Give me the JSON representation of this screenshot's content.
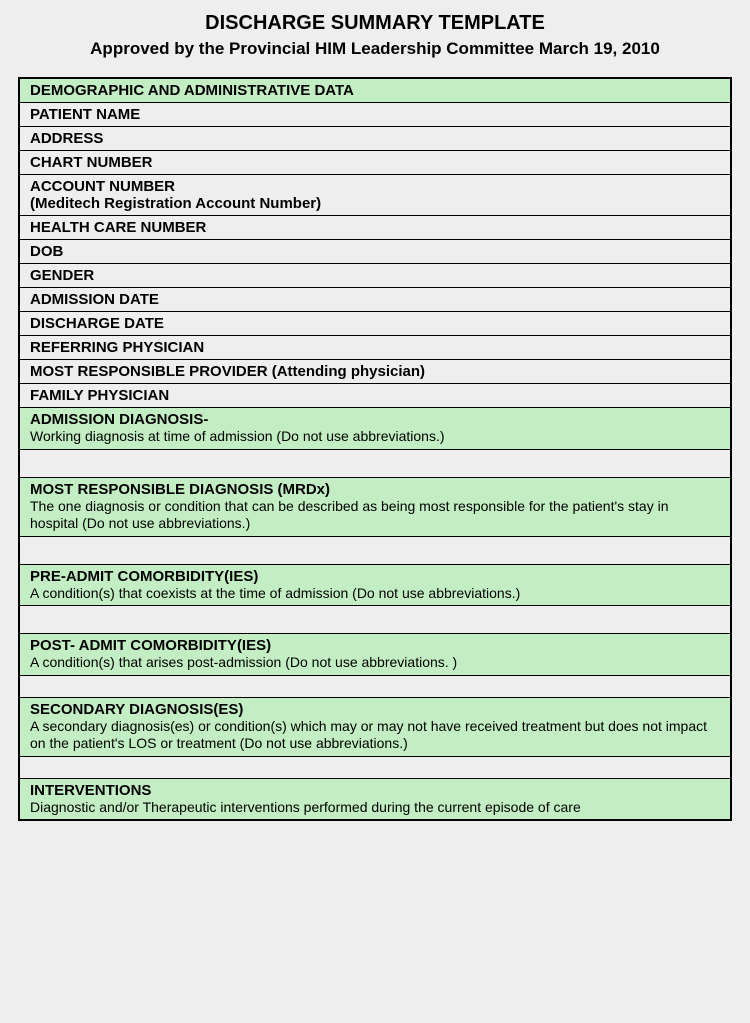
{
  "header": {
    "title": "DISCHARGE SUMMARY TEMPLATE",
    "subtitle": "Approved by the Provincial HIM Leadership Committee March 19, 2010"
  },
  "section_header": "DEMOGRAPHIC AND ADMINISTRATIVE DATA",
  "fields": {
    "patient_name": "PATIENT NAME",
    "address": "ADDRESS",
    "chart_number": "CHART NUMBER",
    "account_number": "ACCOUNT NUMBER",
    "account_number_sub": "(Meditech Registration Account Number)",
    "health_care_number": "HEALTH CARE NUMBER",
    "dob": "DOB",
    "gender": "GENDER",
    "admission_date": "ADMISSION DATE",
    "discharge_date": "DISCHARGE DATE",
    "referring_physician": "REFERRING PHYSICIAN",
    "most_responsible_provider": "MOST RESPONSIBLE PROVIDER (Attending physician)",
    "family_physician": "FAMILY PHYSICIAN"
  },
  "blocks": {
    "admission_diagnosis": {
      "title": "ADMISSION DIAGNOSIS-",
      "desc": "Working diagnosis at time of admission  (Do not use abbreviations.)"
    },
    "mrdx": {
      "title": "MOST RESPONSIBLE DIAGNOSIS (MRDx)",
      "desc": "The one diagnosis or condition that can be described as being most responsible for the patient's stay in hospital (Do not use abbreviations.)"
    },
    "pre_admit": {
      "title": "PRE-ADMIT COMORBIDITY(IES)",
      "desc": "A condition(s) that coexists at the time of admission (Do not use abbreviations.)"
    },
    "post_admit": {
      "title": "POST- ADMIT COMORBIDITY(IES)",
      "desc": "A condition(s) that arises post-admission  (Do not use abbreviations. )"
    },
    "secondary": {
      "title": "SECONDARY DIAGNOSIS(ES)",
      "desc": "A secondary diagnosis(es) or condition(s) which may or may not have received treatment but does not impact on the patient's LOS or treatment (Do not use abbreviations.)"
    },
    "interventions": {
      "title": "INTERVENTIONS",
      "desc": "Diagnostic and/or Therapeutic interventions performed during the current episode of care"
    }
  },
  "colors": {
    "page_bg": "#eeeeee",
    "green_bg": "#c3eec3",
    "border": "#000000"
  }
}
